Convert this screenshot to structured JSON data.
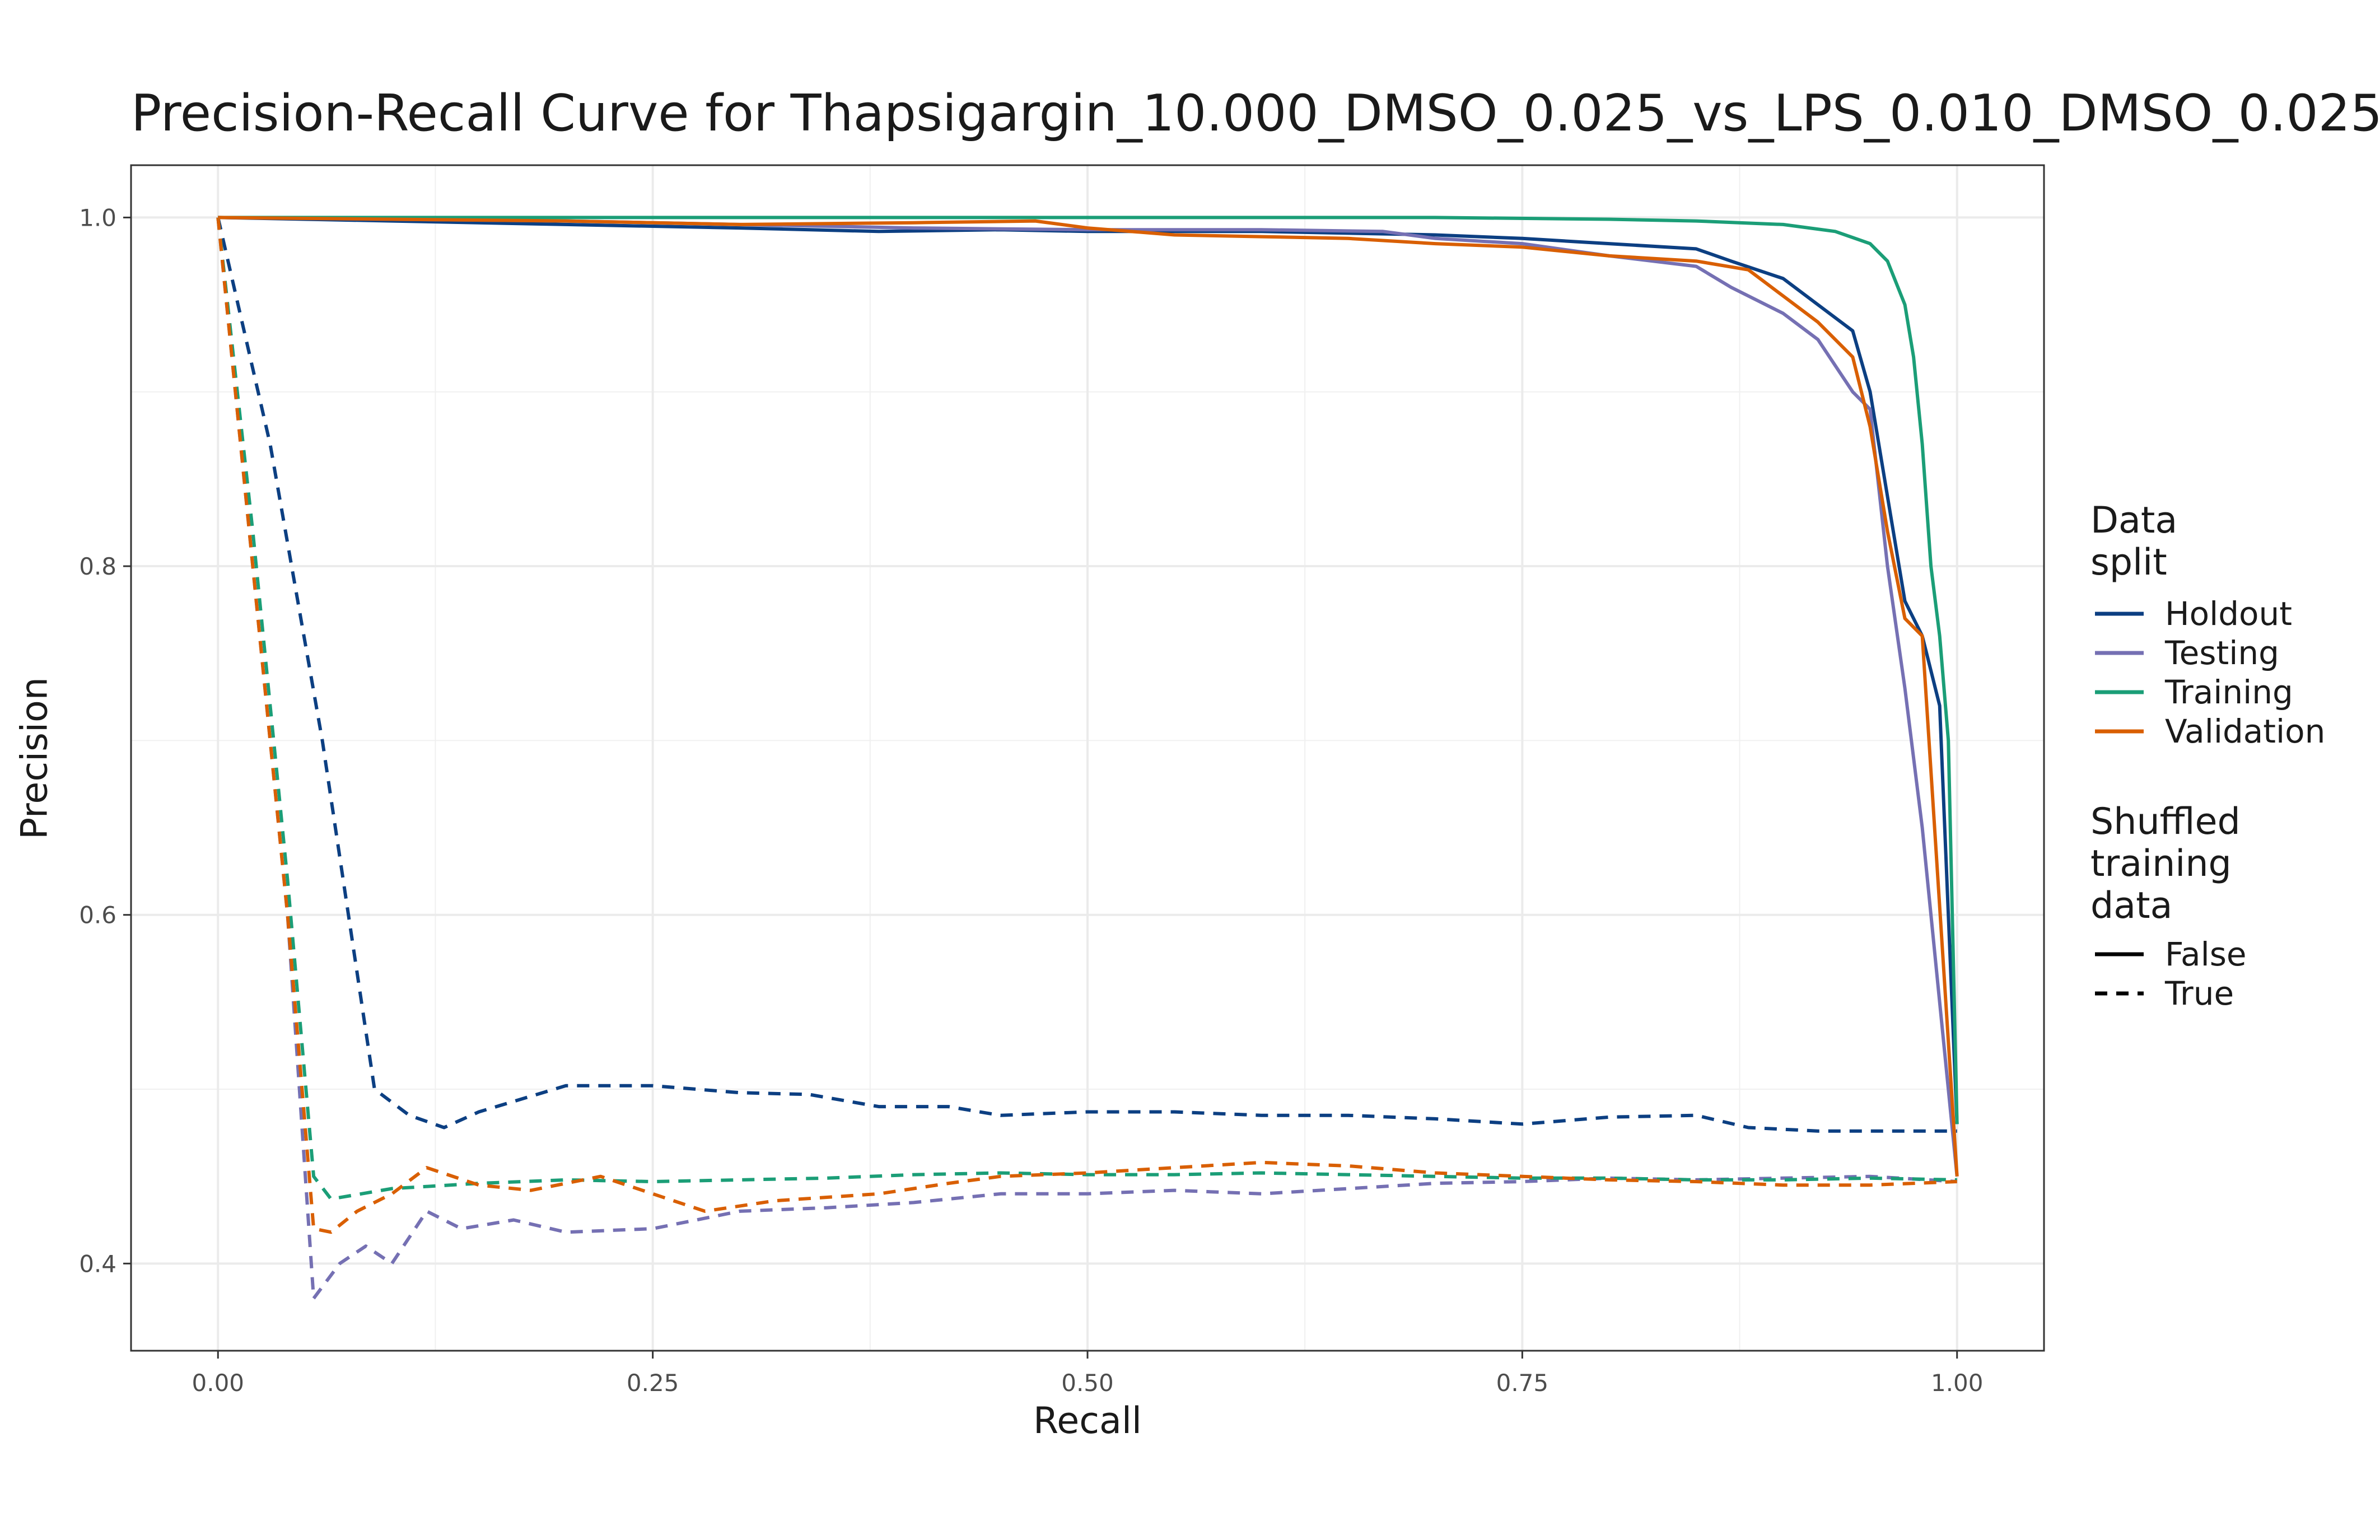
{
  "chart_data": {
    "type": "line",
    "title": "Precision-Recall Curve for Thapsigargin_10.000_DMSO_0.025_vs_LPS_0.010_DMSO_0.025",
    "xlabel": "Recall",
    "ylabel": "Precision",
    "xlim": [
      -0.05,
      1.05
    ],
    "ylim": [
      0.35,
      1.03
    ],
    "xticks": [
      "0.00",
      "0.25",
      "0.50",
      "0.75",
      "1.00"
    ],
    "xtick_values": [
      0,
      0.25,
      0.5,
      0.75,
      1.0
    ],
    "yticks": [
      "0.4",
      "0.6",
      "0.8",
      "1.0"
    ],
    "ytick_values": [
      0.4,
      0.6,
      0.8,
      1.0
    ],
    "grid": true,
    "legend": {
      "position": "right",
      "color_title": "Data split",
      "color_title_lines": [
        "Data",
        "split"
      ],
      "linetype_title": "Shuffled training data",
      "linetype_title_lines": [
        "Shuffled",
        "training",
        "data"
      ],
      "color_entries": [
        {
          "label": "Holdout",
          "color": "#0c3f82"
        },
        {
          "label": "Testing",
          "color": "#7570b3"
        },
        {
          "label": "Training",
          "color": "#1b9e77"
        },
        {
          "label": "Validation",
          "color": "#d95f02"
        }
      ],
      "linetype_entries": [
        {
          "label": "False",
          "dash": "solid"
        },
        {
          "label": "True",
          "dash": "dashed"
        }
      ]
    },
    "series": [
      {
        "name": "Holdout",
        "shuffled": false,
        "color": "#0c3f82",
        "x": [
          0,
          0.1,
          0.2,
          0.3,
          0.38,
          0.45,
          0.5,
          0.6,
          0.7,
          0.75,
          0.8,
          0.85,
          0.87,
          0.9,
          0.92,
          0.94,
          0.95,
          0.96,
          0.97,
          0.98,
          0.99,
          1.0
        ],
        "y": [
          1.0,
          0.998,
          0.996,
          0.994,
          0.992,
          0.993,
          0.992,
          0.992,
          0.99,
          0.988,
          0.985,
          0.982,
          0.975,
          0.965,
          0.95,
          0.935,
          0.9,
          0.84,
          0.78,
          0.76,
          0.72,
          0.48
        ]
      },
      {
        "name": "Testing",
        "shuffled": false,
        "color": "#7570b3",
        "x": [
          0,
          0.1,
          0.2,
          0.3,
          0.4,
          0.5,
          0.6,
          0.67,
          0.7,
          0.75,
          0.8,
          0.85,
          0.87,
          0.9,
          0.92,
          0.94,
          0.95,
          0.96,
          0.97,
          0.98,
          1.0
        ],
        "y": [
          1.0,
          0.999,
          0.998,
          0.996,
          0.994,
          0.993,
          0.993,
          0.992,
          0.988,
          0.985,
          0.978,
          0.972,
          0.96,
          0.945,
          0.93,
          0.9,
          0.89,
          0.8,
          0.73,
          0.65,
          0.45
        ]
      },
      {
        "name": "Training",
        "shuffled": false,
        "color": "#1b9e77",
        "x": [
          0,
          0.2,
          0.4,
          0.6,
          0.7,
          0.8,
          0.85,
          0.9,
          0.93,
          0.95,
          0.96,
          0.97,
          0.975,
          0.98,
          0.985,
          0.99,
          0.995,
          1.0
        ],
        "y": [
          1.0,
          1.0,
          1.0,
          1.0,
          1.0,
          0.999,
          0.998,
          0.996,
          0.992,
          0.985,
          0.975,
          0.95,
          0.92,
          0.87,
          0.8,
          0.76,
          0.7,
          0.48
        ]
      },
      {
        "name": "Validation",
        "shuffled": false,
        "color": "#d95f02",
        "x": [
          0,
          0.1,
          0.2,
          0.3,
          0.4,
          0.47,
          0.5,
          0.55,
          0.6,
          0.65,
          0.7,
          0.75,
          0.8,
          0.85,
          0.88,
          0.9,
          0.92,
          0.94,
          0.95,
          0.96,
          0.97,
          0.98,
          1.0
        ],
        "y": [
          1.0,
          0.999,
          0.998,
          0.996,
          0.997,
          0.998,
          0.994,
          0.99,
          0.989,
          0.988,
          0.985,
          0.983,
          0.978,
          0.975,
          0.97,
          0.955,
          0.94,
          0.92,
          0.88,
          0.82,
          0.77,
          0.76,
          0.45
        ]
      },
      {
        "name": "Holdout",
        "shuffled": true,
        "color": "#0c3f82",
        "x": [
          0,
          0.03,
          0.06,
          0.09,
          0.11,
          0.13,
          0.15,
          0.2,
          0.25,
          0.3,
          0.34,
          0.38,
          0.42,
          0.45,
          0.5,
          0.55,
          0.6,
          0.65,
          0.7,
          0.75,
          0.8,
          0.85,
          0.88,
          0.92,
          0.95,
          1.0
        ],
        "y": [
          1.0,
          0.87,
          0.7,
          0.5,
          0.485,
          0.478,
          0.487,
          0.502,
          0.502,
          0.498,
          0.497,
          0.49,
          0.49,
          0.485,
          0.487,
          0.487,
          0.485,
          0.485,
          0.483,
          0.48,
          0.484,
          0.485,
          0.478,
          0.476,
          0.476,
          0.476
        ]
      },
      {
        "name": "Testing",
        "shuffled": true,
        "color": "#7570b3",
        "x": [
          0,
          0.02,
          0.04,
          0.055,
          0.07,
          0.085,
          0.1,
          0.12,
          0.14,
          0.17,
          0.2,
          0.25,
          0.3,
          0.35,
          0.4,
          0.45,
          0.5,
          0.55,
          0.6,
          0.65,
          0.7,
          0.75,
          0.8,
          0.85,
          0.9,
          0.95,
          1.0
        ],
        "y": [
          1.0,
          0.8,
          0.6,
          0.38,
          0.4,
          0.41,
          0.4,
          0.43,
          0.42,
          0.425,
          0.418,
          0.42,
          0.43,
          0.432,
          0.435,
          0.44,
          0.44,
          0.442,
          0.44,
          0.443,
          0.446,
          0.447,
          0.449,
          0.448,
          0.449,
          0.45,
          0.447
        ]
      },
      {
        "name": "Training",
        "shuffled": true,
        "color": "#1b9e77",
        "x": [
          0,
          0.02,
          0.04,
          0.055,
          0.065,
          0.1,
          0.15,
          0.2,
          0.25,
          0.3,
          0.35,
          0.4,
          0.45,
          0.5,
          0.55,
          0.6,
          0.65,
          0.7,
          0.75,
          0.8,
          0.85,
          0.9,
          0.95,
          1.0
        ],
        "y": [
          1.0,
          0.82,
          0.62,
          0.45,
          0.437,
          0.443,
          0.446,
          0.448,
          0.447,
          0.448,
          0.449,
          0.451,
          0.452,
          0.451,
          0.451,
          0.452,
          0.451,
          0.45,
          0.449,
          0.449,
          0.448,
          0.448,
          0.449,
          0.448
        ]
      },
      {
        "name": "Validation",
        "shuffled": true,
        "color": "#d95f02",
        "x": [
          0,
          0.02,
          0.04,
          0.055,
          0.065,
          0.08,
          0.1,
          0.12,
          0.15,
          0.18,
          0.22,
          0.25,
          0.28,
          0.32,
          0.38,
          0.42,
          0.45,
          0.5,
          0.55,
          0.6,
          0.65,
          0.7,
          0.75,
          0.8,
          0.85,
          0.9,
          0.95,
          1.0
        ],
        "y": [
          1.0,
          0.8,
          0.6,
          0.42,
          0.418,
          0.43,
          0.44,
          0.455,
          0.445,
          0.442,
          0.45,
          0.44,
          0.43,
          0.436,
          0.44,
          0.446,
          0.45,
          0.452,
          0.455,
          0.458,
          0.456,
          0.452,
          0.45,
          0.448,
          0.447,
          0.445,
          0.445,
          0.447
        ]
      }
    ]
  }
}
